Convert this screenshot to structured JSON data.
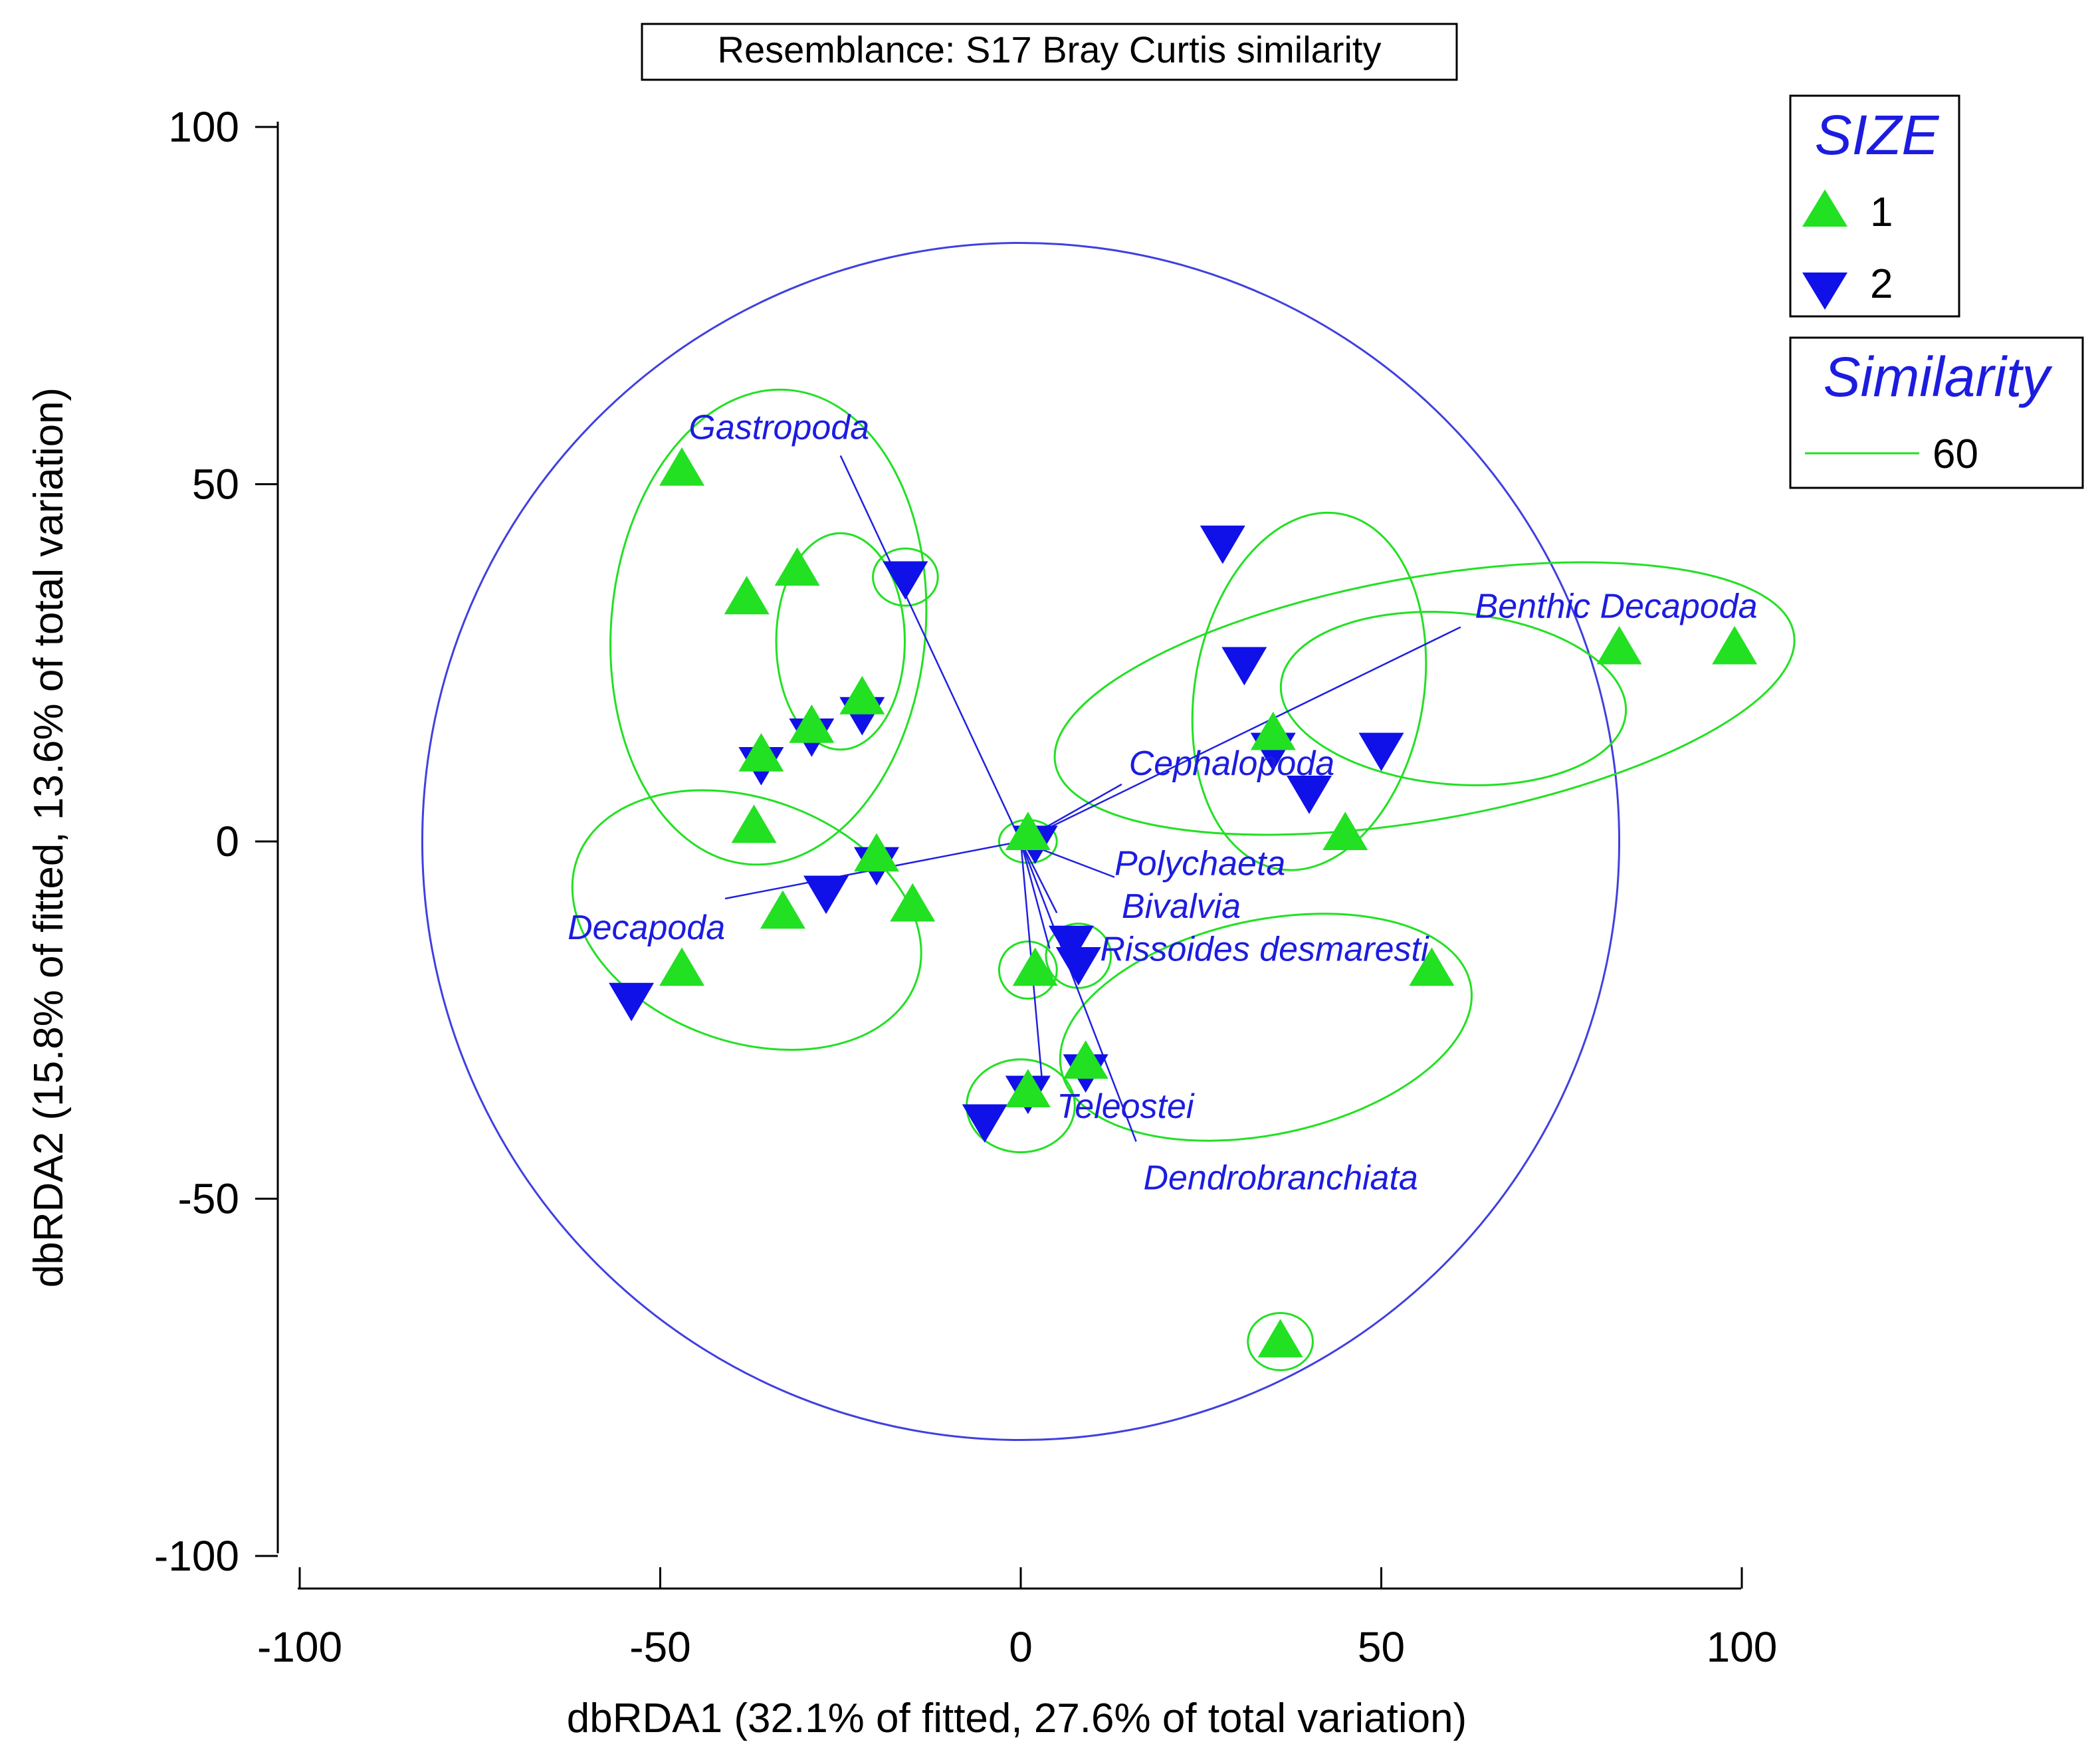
{
  "chart_data": {
    "type": "scatter",
    "title": "Resemblance: S17 Bray Curtis similarity",
    "xlabel": "dbRDA1 (32.1% of fitted, 27.6% of total variation)",
    "ylabel": "dbRDA2 (15.8% of fitted, 13.6% of total variation)",
    "xlim": [
      -100,
      100
    ],
    "ylim": [
      -100,
      100
    ],
    "xticks": [
      -100,
      -50,
      0,
      50,
      100
    ],
    "yticks": [
      -100,
      -50,
      0,
      50,
      100
    ],
    "xtick_labels": [
      "-100",
      "-50",
      "0",
      "50",
      "100"
    ],
    "ytick_labels": [
      "-100",
      "-50",
      "0",
      "50",
      "100"
    ],
    "series": [
      {
        "name": "1",
        "marker": "triangle-up",
        "color": "#22e022",
        "points": [
          [
            -47,
            52
          ],
          [
            -38,
            34
          ],
          [
            -31,
            38
          ],
          [
            -29,
            16
          ],
          [
            -22,
            20
          ],
          [
            -36,
            12
          ],
          [
            -37,
            2
          ],
          [
            -20,
            -2
          ],
          [
            -33,
            -10
          ],
          [
            -15,
            -9
          ],
          [
            -47,
            -18
          ],
          [
            1,
            1
          ],
          [
            2,
            -18
          ],
          [
            1,
            -35
          ],
          [
            9,
            -31
          ],
          [
            35,
            15
          ],
          [
            45,
            1
          ],
          [
            57,
            -18
          ],
          [
            83,
            27
          ],
          [
            99,
            27
          ],
          [
            36,
            -70
          ]
        ]
      },
      {
        "name": "2",
        "marker": "triangle-down",
        "color": "#1010e8",
        "points": [
          [
            -16,
            37
          ],
          [
            -22,
            18
          ],
          [
            -29,
            15
          ],
          [
            -36,
            11
          ],
          [
            -20,
            -3
          ],
          [
            -27,
            -7
          ],
          [
            -54,
            -22
          ],
          [
            2,
            0
          ],
          [
            7,
            -14
          ],
          [
            8,
            -17
          ],
          [
            9,
            -32
          ],
          [
            1,
            -35
          ],
          [
            -5,
            -39
          ],
          [
            28,
            42
          ],
          [
            31,
            25
          ],
          [
            35,
            13
          ],
          [
            40,
            7
          ],
          [
            50,
            13
          ]
        ]
      }
    ],
    "vectors": [
      {
        "label": "Gastropoda",
        "x": -25,
        "y": 54
      },
      {
        "label": "Decapoda",
        "x": -41,
        "y": -8
      },
      {
        "label": "Benthic Decapoda",
        "x": 61,
        "y": 30
      },
      {
        "label": "Cephalopoda",
        "x": 14,
        "y": 8
      },
      {
        "label": "Polychaeta",
        "x": 13,
        "y": -5
      },
      {
        "label": "Bivalvia",
        "x": 5,
        "y": -10
      },
      {
        "label": "Rissoides desmaresti",
        "x": 4,
        "y": -15
      },
      {
        "label": "Teleostei",
        "x": 3,
        "y": -34
      },
      {
        "label": "Dendrobranchiata",
        "x": 16,
        "y": -42
      }
    ],
    "circle_radius": 83,
    "similarity_contours": [
      {
        "cx": -35,
        "cy": 30,
        "rx": 33,
        "ry": 22,
        "angle": 85
      },
      {
        "cx": -25,
        "cy": 28,
        "rx": 15,
        "ry": 9,
        "angle": 90
      },
      {
        "cx": -16,
        "cy": 37,
        "rx": 4.5,
        "ry": 4,
        "angle": 0
      },
      {
        "cx": -38,
        "cy": -11,
        "rx": 25,
        "ry": 17,
        "angle": -20
      },
      {
        "cx": 40,
        "cy": 21,
        "rx": 25,
        "ry": 16,
        "angle": 80
      },
      {
        "cx": 60,
        "cy": 20,
        "rx": 24,
        "ry": 12,
        "angle": -5
      },
      {
        "cx": 56,
        "cy": 20,
        "rx": 52,
        "ry": 17,
        "angle": 10
      },
      {
        "cx": 1,
        "cy": 0,
        "rx": 4,
        "ry": 3,
        "angle": 0
      },
      {
        "cx": 1,
        "cy": -18,
        "rx": 4,
        "ry": 4,
        "angle": 0
      },
      {
        "cx": 8,
        "cy": -16,
        "rx": 4.5,
        "ry": 4.5,
        "angle": 0
      },
      {
        "cx": 0,
        "cy": -37,
        "rx": 7.5,
        "ry": 6.5,
        "angle": 0
      },
      {
        "cx": 34,
        "cy": -26,
        "rx": 29,
        "ry": 15,
        "angle": 12
      },
      {
        "cx": 36,
        "cy": -70,
        "rx": 4.5,
        "ry": 4,
        "angle": 0
      }
    ],
    "legend": {
      "group_title": "SIZE",
      "group_items": [
        "1",
        "2"
      ],
      "similarity_title": "Similarity",
      "similarity_value": "60",
      "position": "top-right"
    },
    "colors": {
      "group_1": "#22e022",
      "group_2": "#1010e8",
      "vector": "#2020e0",
      "contour": "#22e022",
      "circle": "#4040e0",
      "label": "#1c1ce0"
    }
  }
}
